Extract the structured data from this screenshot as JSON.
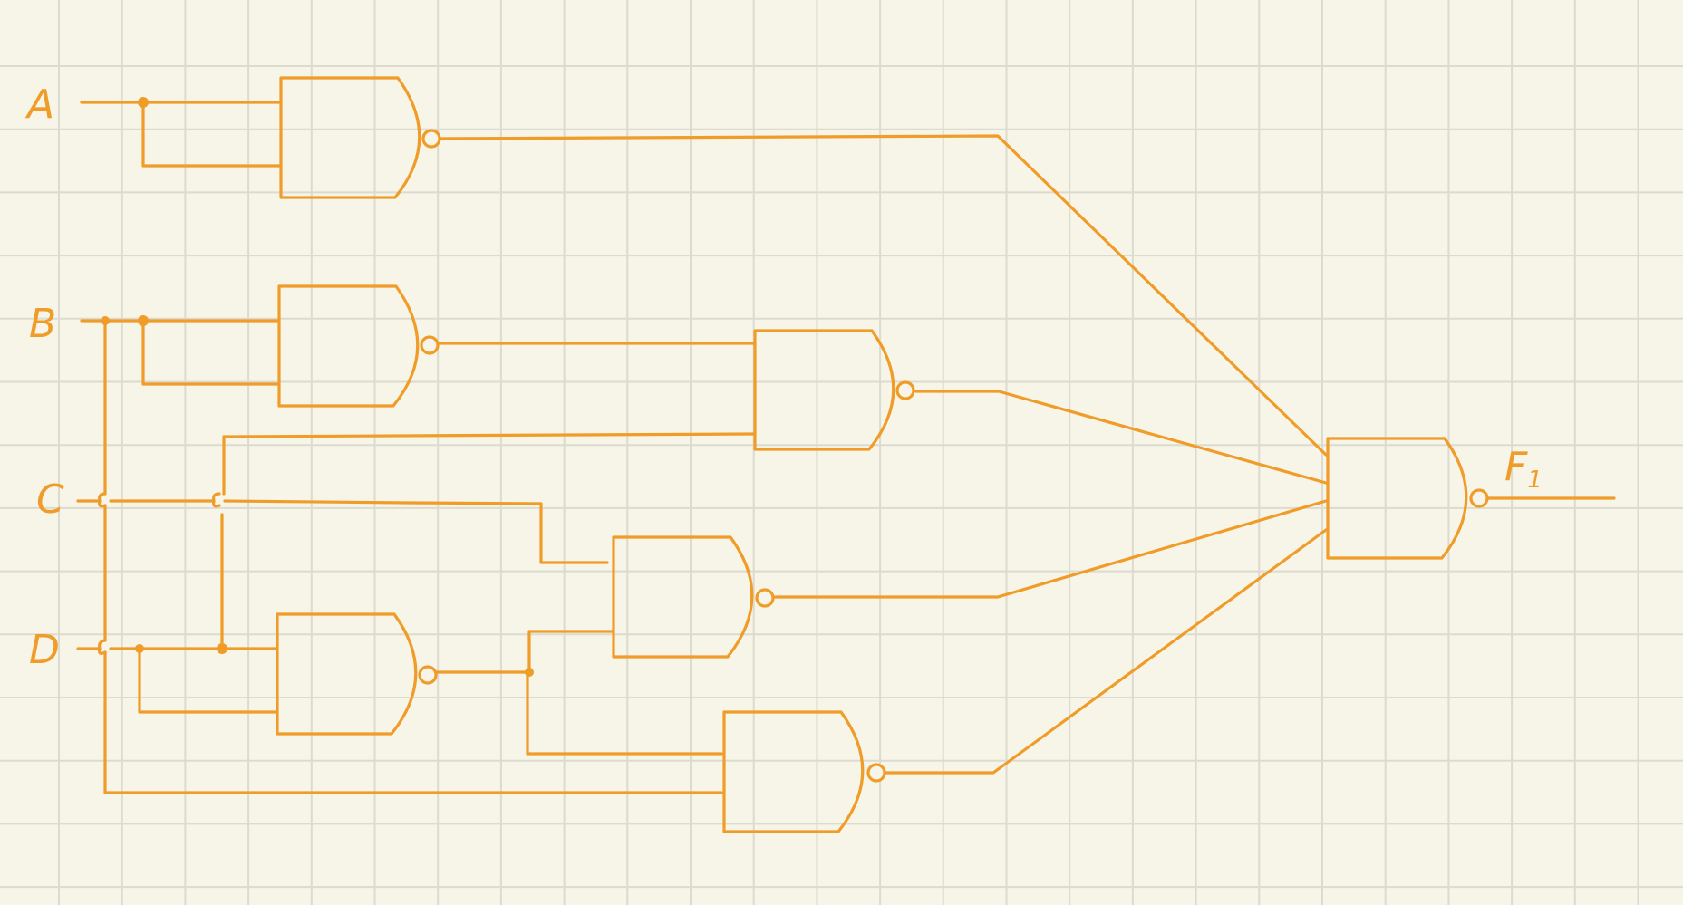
{
  "diagram": {
    "type": "logic-circuit",
    "inputs": [
      {
        "id": "A",
        "label": "A"
      },
      {
        "id": "B",
        "label": "B"
      },
      {
        "id": "C",
        "label": "C"
      },
      {
        "id": "D",
        "label": "D"
      }
    ],
    "output": {
      "id": "F1",
      "label": "F",
      "subscript": "1"
    },
    "gates": [
      {
        "id": "nand-a",
        "kind": "NAND",
        "inputs": [
          "A",
          "A"
        ]
      },
      {
        "id": "nand-b",
        "kind": "NAND",
        "inputs": [
          "B",
          "B"
        ]
      },
      {
        "id": "nand-d",
        "kind": "NAND",
        "inputs": [
          "D",
          "D"
        ]
      },
      {
        "id": "nand-b-c",
        "kind": "NAND",
        "inputs": [
          "nand-b",
          "C"
        ]
      },
      {
        "id": "nand-c-d",
        "kind": "NAND",
        "inputs": [
          "C",
          "nand-d"
        ]
      },
      {
        "id": "nand-d-b",
        "kind": "NAND",
        "inputs": [
          "nand-d",
          "B"
        ]
      },
      {
        "id": "nand-out",
        "kind": "NAND",
        "inputs": [
          "nand-a",
          "nand-b-c",
          "nand-c-d",
          "nand-d-b"
        ],
        "output": "F1"
      }
    ],
    "colors": {
      "ink": "#f09c28",
      "paper": "#f7f4e8",
      "grid": "#dcdbd0"
    }
  }
}
